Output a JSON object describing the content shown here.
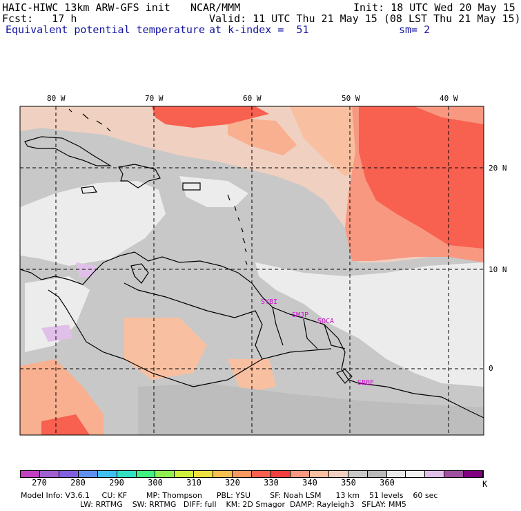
{
  "header": {
    "model_title": "HAIC-HIWC 13km ARW-GFS init",
    "agency": "NCAR/MMM",
    "init": "Init: 18 UTC Wed 20 May 15",
    "fcst": "Fcst:   17 h",
    "valid": "Valid: 11 UTC Thu 21 May 15 (08 LST Thu 21 May 15)",
    "field": "Equivalent potential temperature",
    "level": "at k-index =  51",
    "smoothing": "sm= 2"
  },
  "axes": {
    "lon_labels": [
      "80 W",
      "70 W",
      "60 W",
      "50 W",
      "40 W"
    ],
    "lat_labels": [
      "20 N",
      "10 N",
      "0"
    ]
  },
  "stations": [
    "SYBI",
    "SMJP",
    "SOCA",
    "SBBE"
  ],
  "colorbar": {
    "unit": "K",
    "labels": [
      "270",
      "280",
      "290",
      "300",
      "310",
      "320",
      "330",
      "340",
      "350",
      "360"
    ],
    "colors": [
      "#c040c0",
      "#a060d0",
      "#8060e0",
      "#6090f0",
      "#40c0f0",
      "#30e0c0",
      "#40f080",
      "#90f050",
      "#d0f040",
      "#f0e040",
      "#f8c050",
      "#f89860",
      "#f86050",
      "#f04040",
      "#f89880",
      "#f8c0a0",
      "#f0d0c0",
      "#c8c8c8",
      "#b8b8b8",
      "#e8e8e8",
      "#f0f0f0",
      "#e0c0e8",
      "#a050a0",
      "#800080"
    ]
  },
  "model_info": {
    "line1": "Model Info: V3.6.1     CU: KF        MP: Thompson      PBL: YSU        SF: Noah LSM      13 km    51 levels    60 sec",
    "line2": "                LW: RRTMG    SW: RRTMG   DIFF: full    KM: 2D Smagor  DAMP: Rayleigh3   SFLAY: MM5"
  }
}
